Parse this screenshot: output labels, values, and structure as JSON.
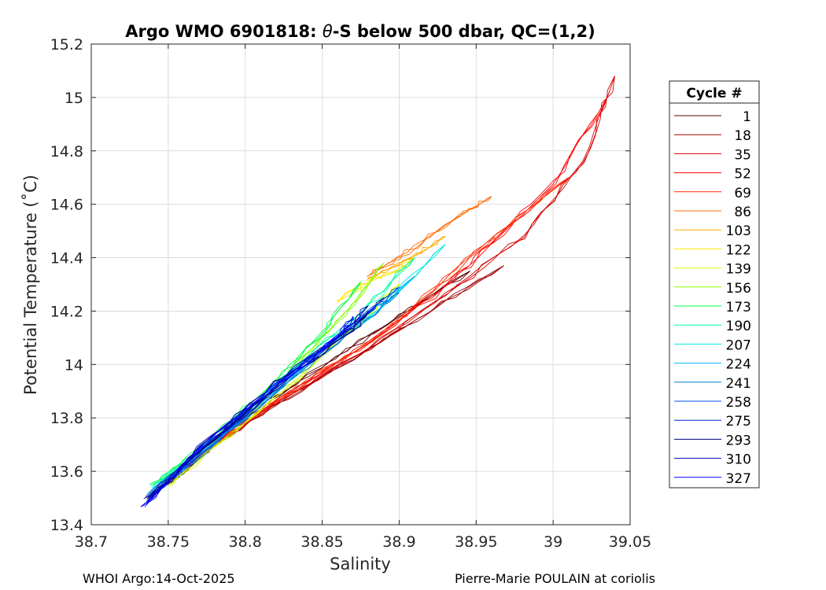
{
  "chart_data": {
    "type": "line",
    "title_prefix": "Argo WMO 6901818: ",
    "title_symbol": "θ",
    "title_suffix": "-S below 500 dbar,  QC=(1,2)",
    "xlabel": "Salinity",
    "ylabel": "Potential Temperature (˚C)",
    "xlim": [
      38.7,
      39.05
    ],
    "ylim": [
      13.4,
      15.2
    ],
    "xticks": [
      38.7,
      38.75,
      38.8,
      38.85,
      38.9,
      38.95,
      39,
      39.05
    ],
    "xtick_labels": [
      "38.7",
      "38.75",
      "38.8",
      "38.85",
      "38.9",
      "38.95",
      "39",
      "39.05"
    ],
    "yticks": [
      13.4,
      13.6,
      13.8,
      14,
      14.2,
      14.4,
      14.6,
      14.8,
      15,
      15.2
    ],
    "ytick_labels": [
      "13.4",
      "13.6",
      "13.8",
      "14",
      "14.2",
      "14.4",
      "14.6",
      "14.8",
      "15",
      "15.2"
    ],
    "grid": true,
    "legend_title": "Cycle #",
    "legend_position": "right-outside",
    "series": [
      {
        "name": "1",
        "color": "#5c0000",
        "points": [
          [
            38.737,
            13.5
          ],
          [
            38.76,
            13.6
          ],
          [
            38.8,
            13.8
          ],
          [
            38.85,
            13.99
          ],
          [
            38.9,
            14.18
          ],
          [
            38.946,
            14.35
          ]
        ]
      },
      {
        "name": "18",
        "color": "#a00000",
        "points": [
          [
            38.745,
            13.54
          ],
          [
            38.77,
            13.66
          ],
          [
            38.82,
            13.85
          ],
          [
            38.87,
            14.02
          ],
          [
            38.92,
            14.2
          ],
          [
            38.968,
            14.37
          ]
        ]
      },
      {
        "name": "35",
        "color": "#d40000",
        "points": [
          [
            38.75,
            13.57
          ],
          [
            38.78,
            13.7
          ],
          [
            38.83,
            13.89
          ],
          [
            38.88,
            14.06
          ],
          [
            38.93,
            14.26
          ],
          [
            38.98,
            14.48
          ],
          [
            39.02,
            14.76
          ],
          [
            39.04,
            15.08
          ]
        ]
      },
      {
        "name": "52",
        "color": "#ff0000",
        "points": [
          [
            38.752,
            13.58
          ],
          [
            38.78,
            13.71
          ],
          [
            38.83,
            13.9
          ],
          [
            38.88,
            14.08
          ],
          [
            38.93,
            14.29
          ],
          [
            38.96,
            14.45
          ],
          [
            39.0,
            14.68
          ],
          [
            39.035,
            15.0
          ]
        ]
      },
      {
        "name": "69",
        "color": "#ff2a00",
        "points": [
          [
            38.753,
            13.58
          ],
          [
            38.79,
            13.75
          ],
          [
            38.84,
            13.94
          ],
          [
            38.89,
            14.12
          ],
          [
            38.93,
            14.32
          ],
          [
            38.97,
            14.52
          ],
          [
            39.01,
            14.7
          ]
        ]
      },
      {
        "name": "86",
        "color": "#ff6a00",
        "points": [
          [
            38.88,
            14.33
          ],
          [
            38.91,
            14.44
          ],
          [
            38.94,
            14.56
          ],
          [
            38.96,
            14.63
          ]
        ]
      },
      {
        "name": "103",
        "color": "#ffaa00",
        "points": [
          [
            38.88,
            14.32
          ],
          [
            38.9,
            14.38
          ],
          [
            38.92,
            14.44
          ],
          [
            38.93,
            14.48
          ]
        ]
      },
      {
        "name": "122",
        "color": "#ffe600",
        "points": [
          [
            38.86,
            14.24
          ],
          [
            38.88,
            14.31
          ],
          [
            38.9,
            14.36
          ],
          [
            38.91,
            14.4
          ]
        ]
      },
      {
        "name": "139",
        "color": "#ccff00",
        "points": [
          [
            38.75,
            13.55
          ],
          [
            38.8,
            13.78
          ],
          [
            38.85,
            14.03
          ],
          [
            38.88,
            14.19
          ],
          [
            38.9,
            14.3
          ]
        ]
      },
      {
        "name": "156",
        "color": "#80ff00",
        "points": [
          [
            38.745,
            13.56
          ],
          [
            38.8,
            13.8
          ],
          [
            38.84,
            14.04
          ],
          [
            38.87,
            14.22
          ],
          [
            38.89,
            14.38
          ]
        ]
      },
      {
        "name": "173",
        "color": "#00ff40",
        "points": [
          [
            38.74,
            13.55
          ],
          [
            38.78,
            13.73
          ],
          [
            38.82,
            13.94
          ],
          [
            38.85,
            14.12
          ],
          [
            38.875,
            14.31
          ]
        ]
      },
      {
        "name": "190",
        "color": "#00ffa0",
        "points": [
          [
            38.74,
            13.54
          ],
          [
            38.79,
            13.77
          ],
          [
            38.84,
            14.03
          ],
          [
            38.88,
            14.22
          ],
          [
            38.91,
            14.4
          ]
        ]
      },
      {
        "name": "207",
        "color": "#00e6e6",
        "points": [
          [
            38.74,
            13.53
          ],
          [
            38.79,
            13.76
          ],
          [
            38.84,
            14.02
          ],
          [
            38.89,
            14.22
          ],
          [
            38.93,
            14.45
          ]
        ]
      },
      {
        "name": "224",
        "color": "#00b4ff",
        "points": [
          [
            38.738,
            13.52
          ],
          [
            38.79,
            13.76
          ],
          [
            38.84,
            14.0
          ],
          [
            38.88,
            14.19
          ],
          [
            38.91,
            14.33
          ]
        ]
      },
      {
        "name": "241",
        "color": "#0080d0",
        "points": [
          [
            38.738,
            13.51
          ],
          [
            38.79,
            13.75
          ],
          [
            38.84,
            13.99
          ],
          [
            38.88,
            14.17
          ],
          [
            38.9,
            14.27
          ]
        ]
      },
      {
        "name": "258",
        "color": "#0050ff",
        "points": [
          [
            38.737,
            13.5
          ],
          [
            38.79,
            13.76
          ],
          [
            38.84,
            14.01
          ],
          [
            38.88,
            14.2
          ],
          [
            38.9,
            14.29
          ]
        ]
      },
      {
        "name": "275",
        "color": "#0028c8",
        "points": [
          [
            38.737,
            13.5
          ],
          [
            38.78,
            13.72
          ],
          [
            38.83,
            13.97
          ],
          [
            38.87,
            14.14
          ],
          [
            38.89,
            14.25
          ]
        ]
      },
      {
        "name": "293",
        "color": "#000080",
        "points": [
          [
            38.736,
            13.49
          ],
          [
            38.78,
            13.72
          ],
          [
            38.83,
            13.96
          ],
          [
            38.87,
            14.13
          ],
          [
            38.88,
            14.2
          ]
        ]
      },
      {
        "name": "310",
        "color": "#0000b4",
        "points": [
          [
            38.735,
            13.48
          ],
          [
            38.77,
            13.69
          ],
          [
            38.82,
            13.93
          ],
          [
            38.86,
            14.1
          ],
          [
            38.88,
            14.22
          ]
        ]
      },
      {
        "name": "327",
        "color": "#0000ff",
        "points": [
          [
            38.734,
            13.47
          ],
          [
            38.77,
            13.68
          ],
          [
            38.82,
            13.92
          ],
          [
            38.86,
            14.1
          ],
          [
            38.87,
            14.18
          ]
        ]
      }
    ]
  },
  "footer": {
    "left": "WHOI Argo:14-Oct-2025",
    "right": "Pierre-Marie POULAIN at coriolis"
  }
}
